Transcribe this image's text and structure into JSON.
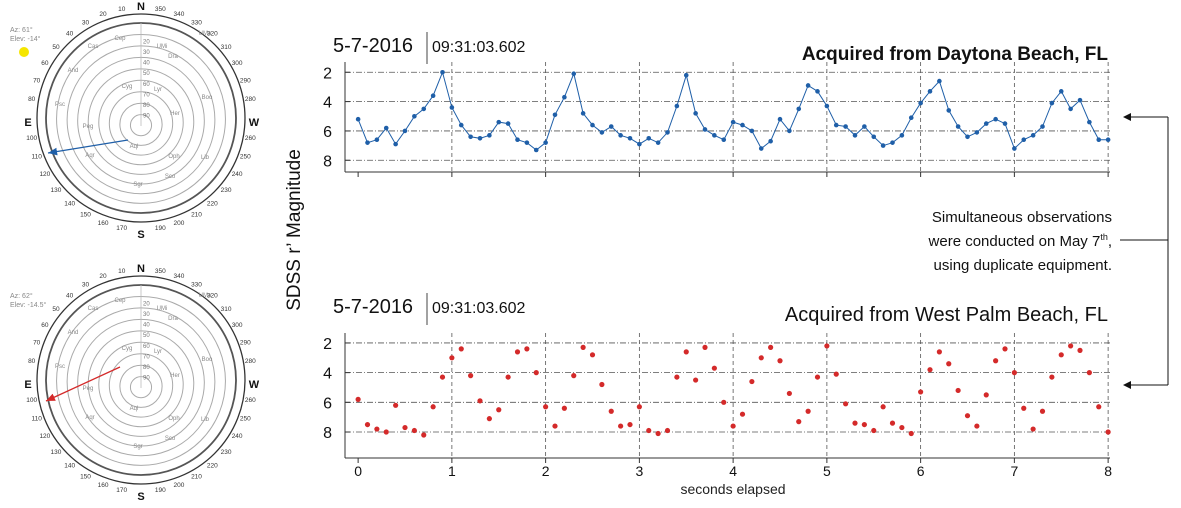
{
  "chart_data": [
    {
      "type": "line",
      "date": "5-7-2016",
      "time": "09:31:03.602",
      "title": "Acquired from Daytona Beach, FL",
      "ylabel": "SDSS r’ Magnitude",
      "color": "#1f5fa8",
      "x": [
        0,
        0.1,
        0.2,
        0.3,
        0.4,
        0.5,
        0.6,
        0.7,
        0.8,
        0.9,
        1,
        1.1,
        1.2,
        1.3,
        1.4,
        1.5,
        1.6,
        1.7,
        1.8,
        1.9,
        2,
        2.1,
        2.2,
        2.3,
        2.4,
        2.5,
        2.6,
        2.7,
        2.8,
        2.9,
        3,
        3.1,
        3.2,
        3.3,
        3.4,
        3.5,
        3.6,
        3.7,
        3.8,
        3.9,
        4,
        4.1,
        4.2,
        4.3,
        4.4,
        4.5,
        4.6,
        4.7,
        4.8,
        4.9,
        5,
        5.1,
        5.2,
        5.3,
        5.4,
        5.5,
        5.6,
        5.7,
        5.8,
        5.9,
        6,
        6.1,
        6.2,
        6.3,
        6.4,
        6.5,
        6.6,
        6.7,
        6.8,
        6.9,
        7,
        7.1,
        7.2,
        7.3,
        7.4,
        7.5,
        7.6,
        7.7,
        7.8,
        7.9,
        8
      ],
      "values": [
        5.2,
        6.8,
        6.6,
        5.8,
        6.9,
        6.0,
        5.0,
        4.5,
        3.6,
        2.0,
        4.4,
        5.6,
        6.4,
        6.5,
        6.3,
        5.4,
        5.5,
        6.6,
        6.8,
        7.3,
        6.8,
        4.9,
        3.7,
        2.1,
        4.8,
        5.6,
        6.1,
        5.7,
        6.3,
        6.5,
        6.9,
        6.5,
        6.8,
        6.1,
        4.3,
        2.2,
        4.8,
        5.9,
        6.3,
        6.6,
        5.4,
        5.6,
        6.0,
        7.2,
        6.7,
        5.2,
        6.0,
        4.5,
        2.9,
        3.3,
        4.3,
        5.6,
        5.7,
        6.3,
        5.7,
        6.4,
        7.0,
        6.8,
        6.3,
        5.1,
        4.1,
        3.3,
        2.6,
        4.6,
        5.7,
        6.4,
        6.1,
        5.5,
        5.2,
        5.5,
        7.2,
        6.6,
        6.3,
        5.7,
        4.1,
        3.3,
        4.5,
        3.9,
        5.4,
        6.6,
        6.6
      ],
      "xlim": [
        -0.14,
        8.02
      ],
      "xticks": [
        0,
        1,
        2,
        3,
        4,
        5,
        6,
        7,
        8
      ],
      "show_xtick_labels": false,
      "ylim": [
        8.8,
        1.3
      ],
      "yticks": [
        2,
        4,
        6,
        8
      ],
      "grid": true
    },
    {
      "type": "scatter",
      "date": "5-7-2016",
      "time": "09:31:03.602",
      "title": "Acquired from West Palm Beach, FL",
      "xlabel": "seconds elapsed",
      "color": "#d42a2a",
      "x": [
        0,
        0.1,
        0.2,
        0.3,
        0.4,
        0.5,
        0.6,
        0.7,
        0.8,
        0.9,
        1,
        1.1,
        1.2,
        1.3,
        1.4,
        1.5,
        1.6,
        1.7,
        1.8,
        1.9,
        2,
        2.1,
        2.2,
        2.3,
        2.4,
        2.5,
        2.6,
        2.7,
        2.8,
        2.9,
        3,
        3.1,
        3.2,
        3.3,
        3.4,
        3.5,
        3.6,
        3.7,
        3.8,
        3.9,
        4,
        4.1,
        4.2,
        4.3,
        4.4,
        4.5,
        4.6,
        4.7,
        4.8,
        4.9,
        5,
        5.1,
        5.2,
        5.3,
        5.4,
        5.5,
        5.6,
        5.7,
        5.8,
        5.9,
        6,
        6.1,
        6.2,
        6.3,
        6.4,
        6.5,
        6.6,
        6.7,
        6.8,
        6.9,
        7,
        7.1,
        7.2,
        7.3,
        7.4,
        7.5,
        7.6,
        7.7,
        7.8,
        7.9,
        8
      ],
      "values": [
        5.8,
        7.5,
        7.8,
        8.0,
        6.2,
        7.7,
        7.9,
        8.2,
        6.3,
        4.3,
        3.0,
        2.4,
        4.2,
        5.9,
        7.1,
        6.5,
        4.3,
        2.6,
        2.4,
        4.0,
        6.3,
        7.6,
        6.4,
        4.2,
        2.3,
        2.8,
        4.8,
        6.6,
        7.6,
        7.5,
        6.3,
        7.9,
        8.1,
        7.9,
        4.3,
        2.6,
        4.5,
        2.3,
        3.7,
        6.0,
        7.6,
        6.8,
        4.6,
        3.0,
        2.3,
        3.2,
        5.4,
        7.3,
        6.6,
        4.3,
        2.2,
        4.1,
        6.1,
        7.4,
        7.5,
        7.9,
        6.3,
        7.4,
        7.7,
        8.1,
        5.3,
        3.8,
        2.6,
        3.4,
        5.2,
        6.9,
        7.6,
        5.5,
        3.2,
        2.4,
        4.0,
        6.4,
        7.8,
        6.6,
        4.3,
        2.8,
        2.2,
        2.5,
        4.0,
        6.3,
        8.0
      ],
      "xlim": [
        -0.14,
        8.02
      ],
      "xticks": [
        0,
        1,
        2,
        3,
        4,
        5,
        6,
        7,
        8
      ],
      "show_xtick_labels": true,
      "ylim": [
        9.75,
        1.33
      ],
      "yticks": [
        2,
        4,
        6,
        8
      ],
      "grid": true
    }
  ],
  "annotation": {
    "line1": "Simultaneous observations",
    "line2": "were conducted on May 7",
    "line2_sup": "th",
    "line2_end": ",",
    "line3": "using duplicate equipment."
  },
  "sky_maps": [
    {
      "az": "Az:   61°",
      "elev": "Elev: -14°",
      "north": "N",
      "south": "S",
      "east": "E",
      "west": "W",
      "constellations": [
        "Cep",
        "UMi",
        "Cas",
        "Dra",
        "UMa",
        "And",
        "Cyg",
        "Lyr",
        "Her",
        "Boo",
        "Psc",
        "Peg",
        "Aql",
        "Aqr",
        "Oph",
        "Lib",
        "Sgr",
        "Sco"
      ]
    },
    {
      "az": "Az:   62°",
      "elev": "Elev: -14.5°",
      "north": "N",
      "south": "S",
      "east": "E",
      "west": "W",
      "constellations": [
        "Cep",
        "UMi",
        "Cas",
        "Dra",
        "UMa",
        "And",
        "Cyg",
        "Lyr",
        "Her",
        "Boo",
        "Psc",
        "Peg",
        "Aql",
        "Aqr",
        "Oph",
        "Lib",
        "Sgr",
        "Sco"
      ]
    }
  ],
  "azimuth_labels": [
    10,
    20,
    30,
    40,
    50,
    60,
    70,
    80,
    100,
    110,
    120,
    130,
    140,
    150,
    160,
    170,
    190,
    200,
    210,
    220,
    230,
    240,
    250,
    260,
    280,
    290,
    300,
    310,
    320,
    330,
    340,
    350
  ],
  "altitude_labels": [
    20,
    30,
    40,
    50,
    60,
    70,
    80,
    90
  ]
}
